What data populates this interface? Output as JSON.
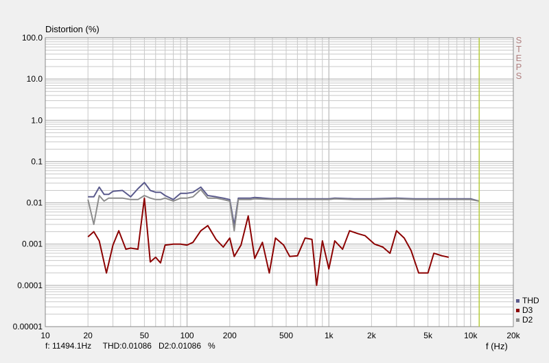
{
  "chart_data": {
    "type": "line",
    "title": "",
    "ylabel": "Distortion (%)",
    "xlabel": "f (Hz)",
    "x_scale": "log",
    "y_scale": "log",
    "xlim": [
      10,
      20000
    ],
    "ylim": [
      1e-05,
      100
    ],
    "grid": true,
    "legend_position": "bottom-right",
    "x_ticks": [
      {
        "value": 10,
        "label": "10"
      },
      {
        "value": 20,
        "label": "20"
      },
      {
        "value": 50,
        "label": "50"
      },
      {
        "value": 100,
        "label": "100"
      },
      {
        "value": 200,
        "label": "200"
      },
      {
        "value": 500,
        "label": "500"
      },
      {
        "value": 1000,
        "label": "1k"
      },
      {
        "value": 2000,
        "label": "2k"
      },
      {
        "value": 5000,
        "label": "5k"
      },
      {
        "value": 10000,
        "label": "10k"
      },
      {
        "value": 20000,
        "label": "20k"
      }
    ],
    "y_ticks": [
      {
        "value": 100,
        "label": "100.0"
      },
      {
        "value": 10,
        "label": "10.0"
      },
      {
        "value": 1,
        "label": "1.0"
      },
      {
        "value": 0.1,
        "label": "0.1"
      },
      {
        "value": 0.01,
        "label": "0.01"
      },
      {
        "value": 0.001,
        "label": "0.001"
      },
      {
        "value": 0.0001,
        "label": "0.0001"
      },
      {
        "value": 1e-05,
        "label": "0.00001"
      }
    ],
    "cursor": {
      "frequency": 11494.1,
      "color": "#b5cc3c"
    },
    "series": [
      {
        "name": "THD",
        "color": "#5a5a8c",
        "points": [
          [
            20,
            0.014
          ],
          [
            22,
            0.014
          ],
          [
            24,
            0.024
          ],
          [
            26,
            0.016
          ],
          [
            28,
            0.016
          ],
          [
            30,
            0.019
          ],
          [
            35,
            0.02
          ],
          [
            40,
            0.014
          ],
          [
            45,
            0.022
          ],
          [
            50,
            0.031
          ],
          [
            55,
            0.02
          ],
          [
            60,
            0.018
          ],
          [
            65,
            0.018
          ],
          [
            70,
            0.015
          ],
          [
            80,
            0.012
          ],
          [
            90,
            0.017
          ],
          [
            100,
            0.017
          ],
          [
            110,
            0.018
          ],
          [
            125,
            0.024
          ],
          [
            140,
            0.015
          ],
          [
            160,
            0.014
          ],
          [
            180,
            0.013
          ],
          [
            200,
            0.012
          ],
          [
            215,
            0.0029
          ],
          [
            230,
            0.013
          ],
          [
            250,
            0.013
          ],
          [
            280,
            0.013
          ],
          [
            300,
            0.0135
          ],
          [
            400,
            0.0125
          ],
          [
            500,
            0.0125
          ],
          [
            700,
            0.0125
          ],
          [
            800,
            0.0125
          ],
          [
            1000,
            0.0125
          ],
          [
            1100,
            0.013
          ],
          [
            1500,
            0.0125
          ],
          [
            2000,
            0.0125
          ],
          [
            3000,
            0.013
          ],
          [
            4000,
            0.0125
          ],
          [
            6000,
            0.0125
          ],
          [
            8000,
            0.0125
          ],
          [
            10000,
            0.0125
          ],
          [
            11500,
            0.011
          ]
        ]
      },
      {
        "name": "D3",
        "color": "#8b0000",
        "points": [
          [
            20,
            0.0015
          ],
          [
            22,
            0.002
          ],
          [
            24,
            0.0012
          ],
          [
            27,
            0.0002
          ],
          [
            30,
            0.00095
          ],
          [
            33,
            0.0021
          ],
          [
            37,
            0.00075
          ],
          [
            40,
            0.0008
          ],
          [
            45,
            0.00075
          ],
          [
            50,
            0.013
          ],
          [
            55,
            0.00037
          ],
          [
            60,
            0.00048
          ],
          [
            65,
            0.00035
          ],
          [
            70,
            0.00095
          ],
          [
            80,
            0.001
          ],
          [
            90,
            0.001
          ],
          [
            100,
            0.00095
          ],
          [
            110,
            0.0011
          ],
          [
            125,
            0.0021
          ],
          [
            140,
            0.0028
          ],
          [
            160,
            0.0013
          ],
          [
            180,
            0.00085
          ],
          [
            200,
            0.0014
          ],
          [
            215,
            0.0005
          ],
          [
            240,
            0.00095
          ],
          [
            270,
            0.0048
          ],
          [
            300,
            0.00045
          ],
          [
            340,
            0.0011
          ],
          [
            380,
            0.0002
          ],
          [
            420,
            0.0014
          ],
          [
            480,
            0.00095
          ],
          [
            530,
            0.0005
          ],
          [
            600,
            0.00052
          ],
          [
            680,
            0.0014
          ],
          [
            760,
            0.0013
          ],
          [
            820,
            0.0001
          ],
          [
            900,
            0.0012
          ],
          [
            1000,
            0.00025
          ],
          [
            1100,
            0.0012
          ],
          [
            1250,
            0.00075
          ],
          [
            1400,
            0.0021
          ],
          [
            1600,
            0.0018
          ],
          [
            1800,
            0.0016
          ],
          [
            2100,
            0.001
          ],
          [
            2400,
            0.00085
          ],
          [
            2700,
            0.0006
          ],
          [
            3000,
            0.0021
          ],
          [
            3400,
            0.0014
          ],
          [
            3800,
            0.0007
          ],
          [
            4300,
            0.0002
          ],
          [
            5000,
            0.0002
          ],
          [
            5500,
            0.0006
          ],
          [
            6300,
            0.00052
          ],
          [
            7000,
            0.00048
          ]
        ]
      },
      {
        "name": "D2",
        "color": "#8c8c8c",
        "points": [
          [
            20,
            0.012
          ],
          [
            22,
            0.003
          ],
          [
            24,
            0.015
          ],
          [
            26,
            0.011
          ],
          [
            28,
            0.013
          ],
          [
            30,
            0.013
          ],
          [
            35,
            0.013
          ],
          [
            40,
            0.012
          ],
          [
            45,
            0.012
          ],
          [
            50,
            0.015
          ],
          [
            55,
            0.013
          ],
          [
            60,
            0.012
          ],
          [
            65,
            0.012
          ],
          [
            70,
            0.013
          ],
          [
            80,
            0.011
          ],
          [
            90,
            0.013
          ],
          [
            100,
            0.013
          ],
          [
            110,
            0.014
          ],
          [
            125,
            0.021
          ],
          [
            140,
            0.013
          ],
          [
            160,
            0.013
          ],
          [
            180,
            0.012
          ],
          [
            200,
            0.011
          ],
          [
            215,
            0.0021
          ],
          [
            230,
            0.012
          ],
          [
            250,
            0.012
          ],
          [
            280,
            0.012
          ],
          [
            300,
            0.0125
          ],
          [
            400,
            0.012
          ],
          [
            500,
            0.012
          ],
          [
            700,
            0.012
          ],
          [
            800,
            0.012
          ],
          [
            1000,
            0.012
          ],
          [
            1100,
            0.0125
          ],
          [
            1500,
            0.012
          ],
          [
            2000,
            0.012
          ],
          [
            3000,
            0.0125
          ],
          [
            4000,
            0.012
          ],
          [
            6000,
            0.012
          ],
          [
            8000,
            0.012
          ],
          [
            10000,
            0.012
          ],
          [
            11500,
            0.011
          ]
        ]
      }
    ]
  },
  "watermark_letters": [
    "S",
    "T",
    "E",
    "P",
    "S"
  ],
  "legend": [
    {
      "label": "THD",
      "color": "#5a5a8c"
    },
    {
      "label": "D3",
      "color": "#8b0000"
    },
    {
      "label": "D2",
      "color": "#8c8c8c"
    }
  ],
  "cursor_readout": "f: 11494.1Hz     THD:0.01086   D2:0.01086   %"
}
